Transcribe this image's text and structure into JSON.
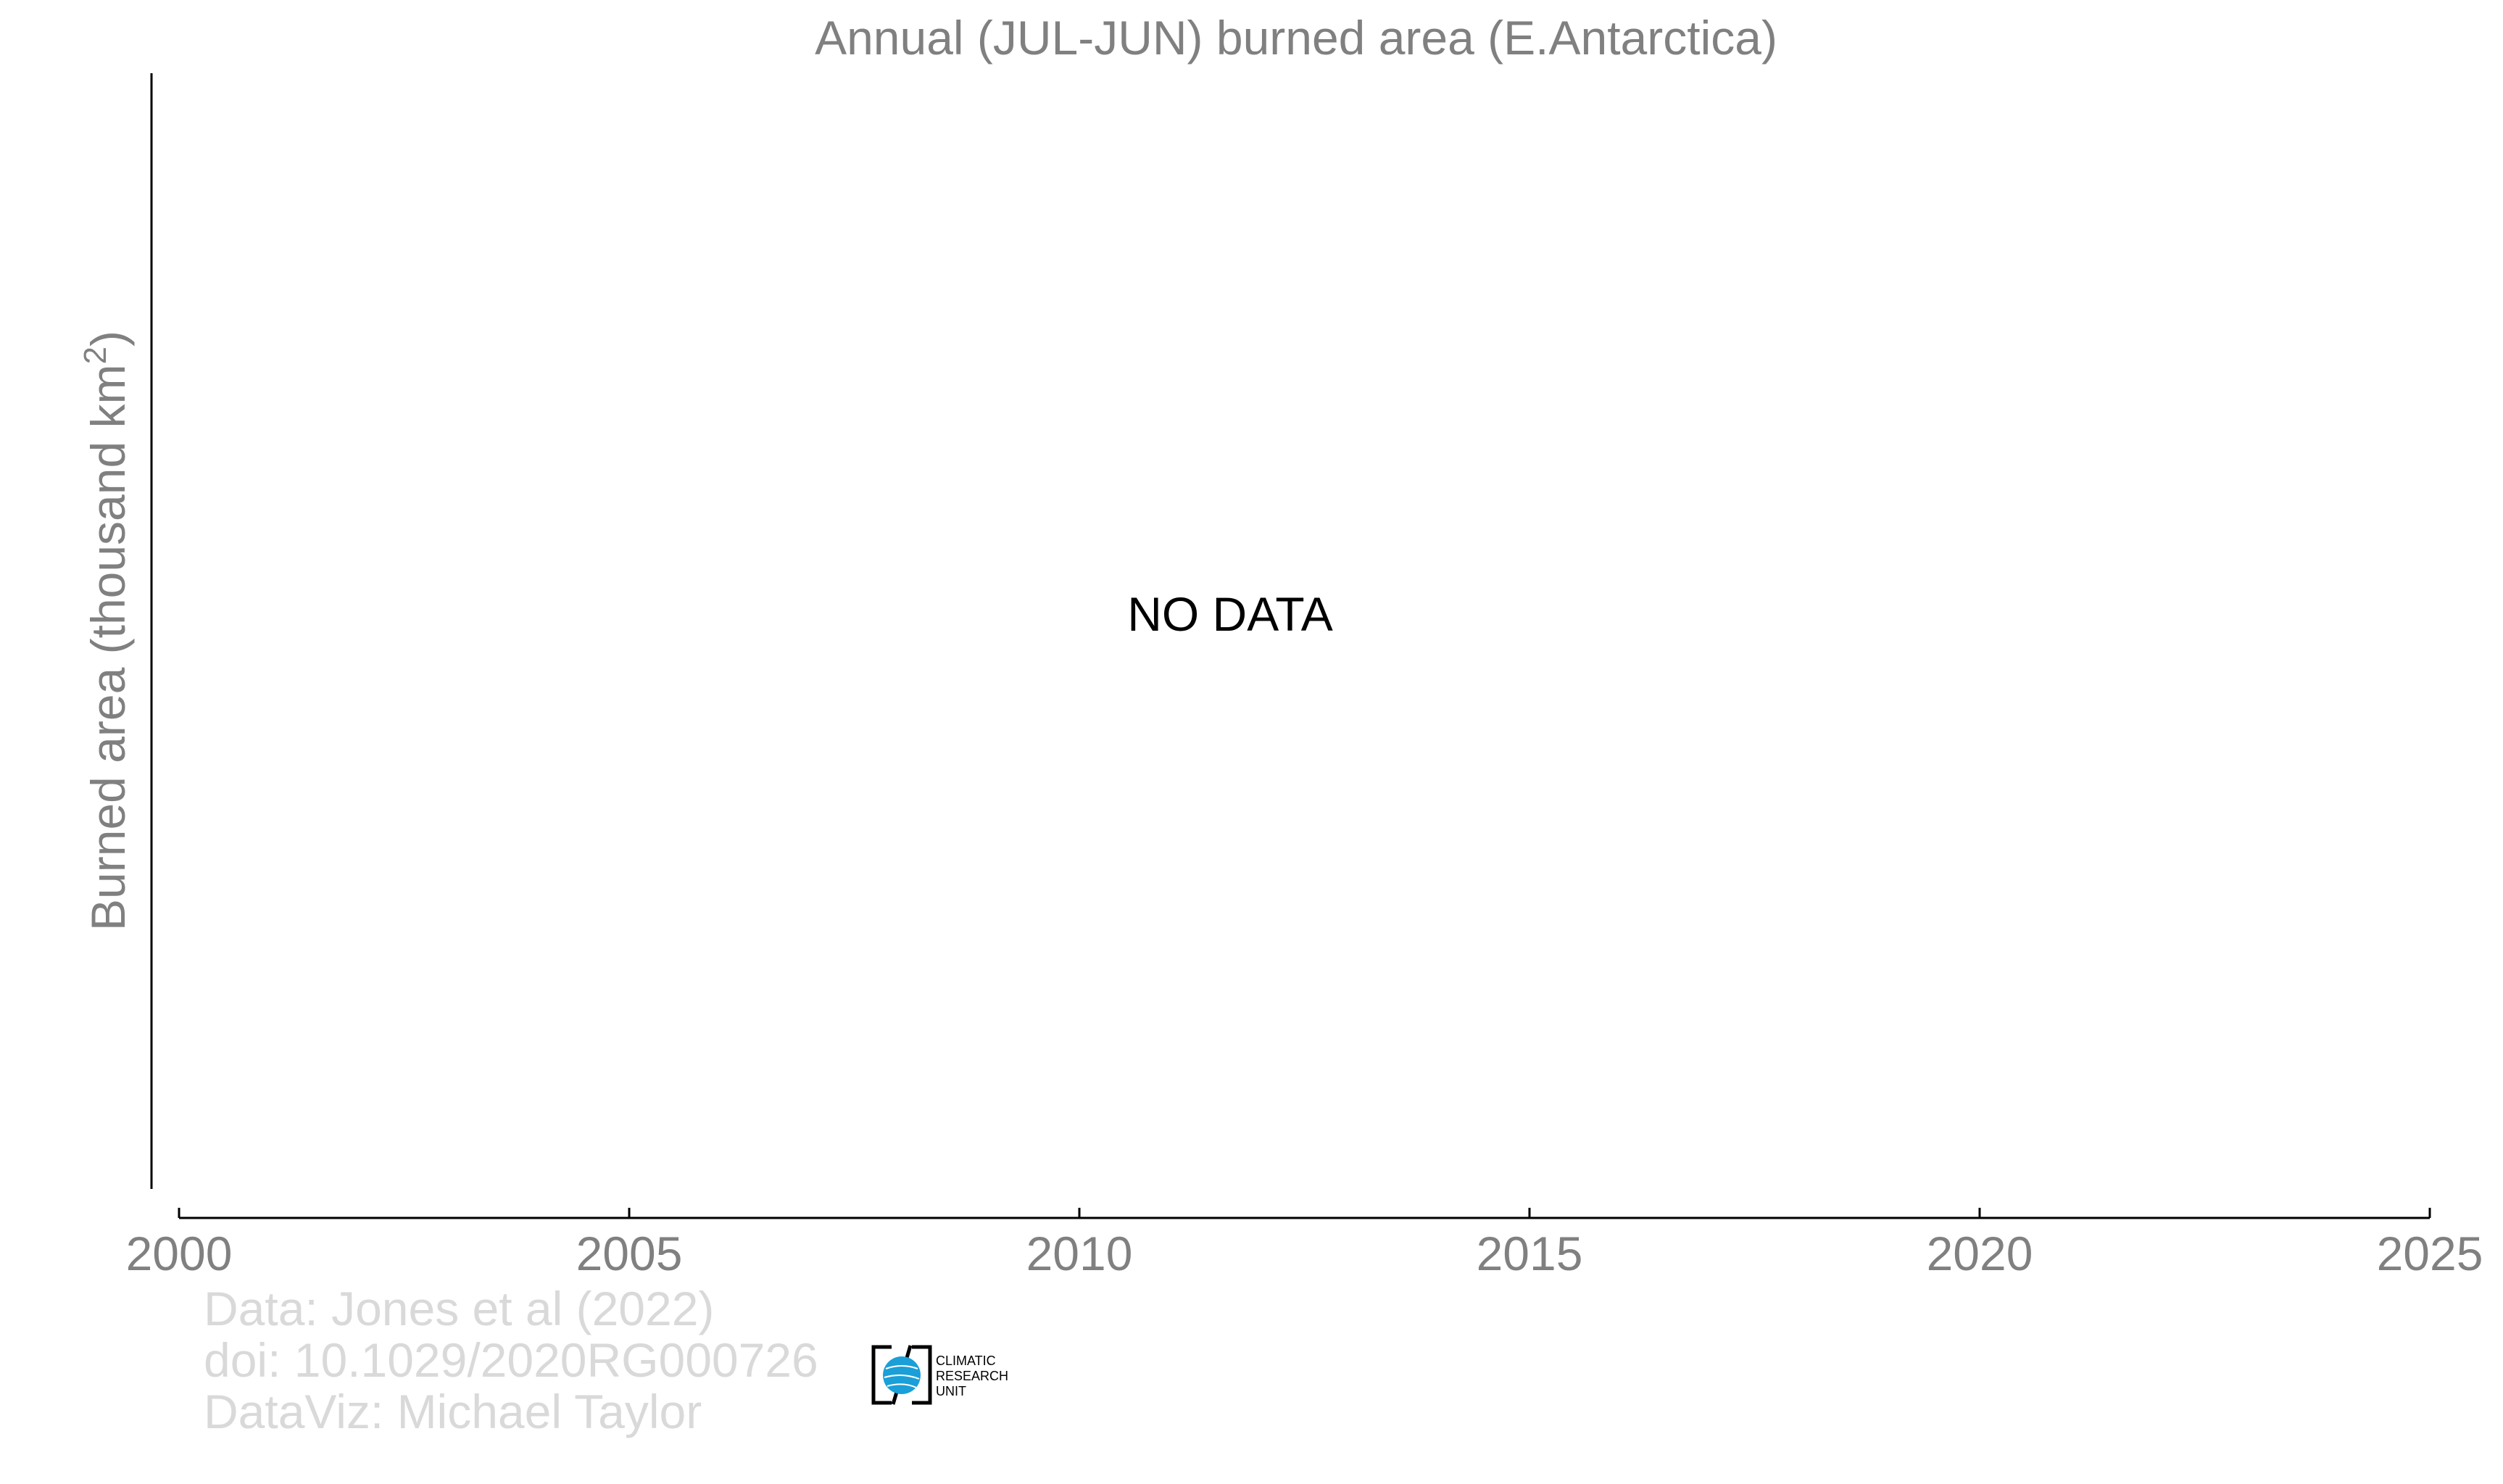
{
  "chart_data": {
    "type": "bar",
    "title": "Annual (JUL-JUN) burned area (E.Antarctica)",
    "ylabel_main": "Burned area (thousand km",
    "ylabel_sup": "2",
    "ylabel_tail": ")",
    "xlabel": "",
    "xlim": [
      2000,
      2025
    ],
    "xticks": [
      2000,
      2005,
      2010,
      2015,
      2020,
      2025
    ],
    "series": [],
    "message": "NO DATA",
    "grid": false
  },
  "credits": {
    "line1": "Data: Jones et al (2022)",
    "line2": "doi: 10.1029/2020RG000726",
    "line3": "DataViz: Michael Taylor"
  },
  "logo": {
    "line1": "CLIMATIC",
    "line2": "RESEARCH",
    "line3": "UNIT"
  },
  "colors": {
    "text_grey": "#808080",
    "credit_grey": "#d9d9d9",
    "axis": "#000000",
    "logo_blue": "#1a9fd8"
  }
}
